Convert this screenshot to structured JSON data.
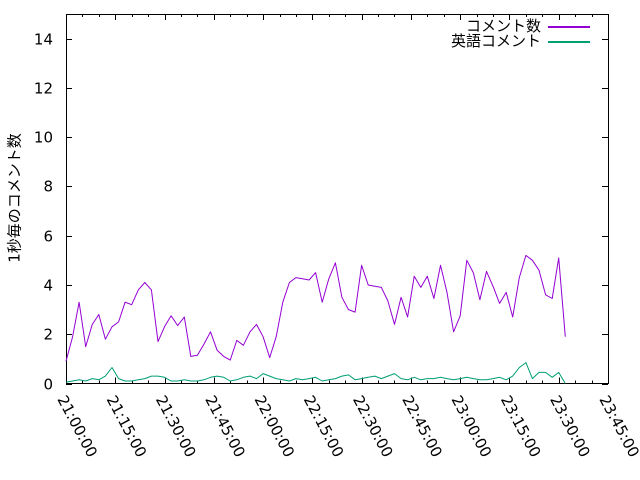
{
  "window": {
    "background": "#ffffff"
  },
  "chart_data": {
    "type": "line",
    "title": "",
    "xlabel": "",
    "ylabel": "1秒毎のコメント数",
    "x_tick_labels": [
      "21:00:00",
      "21:15:00",
      "21:30:00",
      "21:45:00",
      "22:00:00",
      "22:15:00",
      "22:30:00",
      "22:45:00",
      "23:00:00",
      "23:15:00",
      "23:30:00",
      "23:45:00"
    ],
    "x_total_minutes": 165,
    "x_major_interval_min": 15,
    "x_minor_interval_min": 5,
    "ylim": [
      0,
      15
    ],
    "y_ticks": [
      0,
      2,
      4,
      6,
      8,
      10,
      12,
      14
    ],
    "grid": false,
    "legend_position": "top-right",
    "axis_color": "#000000",
    "sample_interval_min": 2,
    "series": [
      {
        "name": "コメント数",
        "color": "#9400d3",
        "start_minute": 0,
        "values": [
          0.9,
          1.9,
          3.3,
          1.5,
          2.4,
          2.8,
          1.8,
          2.3,
          2.5,
          3.3,
          3.2,
          3.8,
          4.1,
          3.8,
          1.7,
          2.3,
          2.75,
          2.35,
          2.7,
          1.1,
          1.15,
          1.6,
          2.1,
          1.35,
          1.1,
          0.95,
          1.75,
          1.55,
          2.1,
          2.4,
          1.9,
          1.05,
          1.9,
          3.3,
          4.1,
          4.3,
          4.25,
          4.2,
          4.5,
          3.3,
          4.25,
          4.9,
          3.5,
          3.0,
          2.9,
          4.8,
          4.0,
          3.95,
          3.9,
          3.35,
          2.4,
          3.5,
          2.7,
          4.35,
          3.9,
          4.35,
          3.45,
          4.8,
          3.7,
          2.1,
          2.75,
          5.0,
          4.5,
          3.4,
          4.55,
          3.95,
          3.25,
          3.7,
          2.7,
          4.3,
          5.2,
          5.0,
          4.6,
          3.6,
          3.45,
          5.1,
          1.9
        ]
      },
      {
        "name": "英語コメント",
        "color": "#009e73",
        "start_minute": 0,
        "values": [
          0.05,
          0.1,
          0.15,
          0.1,
          0.2,
          0.15,
          0.3,
          0.65,
          0.2,
          0.1,
          0.1,
          0.15,
          0.2,
          0.3,
          0.3,
          0.25,
          0.1,
          0.1,
          0.15,
          0.1,
          0.1,
          0.15,
          0.25,
          0.3,
          0.25,
          0.1,
          0.15,
          0.25,
          0.3,
          0.2,
          0.4,
          0.3,
          0.2,
          0.15,
          0.1,
          0.2,
          0.15,
          0.2,
          0.25,
          0.1,
          0.15,
          0.2,
          0.3,
          0.35,
          0.15,
          0.2,
          0.25,
          0.3,
          0.2,
          0.3,
          0.4,
          0.2,
          0.15,
          0.25,
          0.15,
          0.2,
          0.2,
          0.25,
          0.2,
          0.15,
          0.2,
          0.25,
          0.2,
          0.15,
          0.15,
          0.2,
          0.25,
          0.15,
          0.3,
          0.65,
          0.85,
          0.2,
          0.45,
          0.45,
          0.25,
          0.45,
          0.0
        ]
      }
    ]
  }
}
